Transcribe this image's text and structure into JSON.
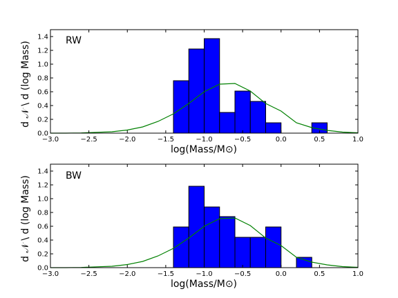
{
  "chart_data": [
    {
      "type": "bar",
      "panel_label": "RW",
      "xlabel": "log(Mass/M⊙)",
      "ylabel": "d 𝒩 \\ d (log Mass)",
      "xlim": [
        -3.0,
        1.0
      ],
      "ylim": [
        0.0,
        1.5
      ],
      "xticks": [
        "−3.0",
        "−2.5",
        "−2.0",
        "−1.5",
        "−1.0",
        "−0.5",
        "0.0",
        "0.5",
        "1.0"
      ],
      "yticks": [
        "0.0",
        "0.2",
        "0.4",
        "0.6",
        "0.8",
        "1.0",
        "1.2",
        "1.4"
      ],
      "histogram": {
        "bin_edges": [
          -1.4,
          -1.2,
          -1.0,
          -0.8,
          -0.6,
          -0.4,
          -0.2,
          0.0,
          0.2,
          0.4,
          0.6
        ],
        "values": [
          0.76,
          1.22,
          1.37,
          0.3,
          0.61,
          0.46,
          0.15,
          0.0,
          0.0,
          0.15
        ],
        "color": "#0000ff"
      },
      "curve": {
        "color": "#008000",
        "x": [
          -3.0,
          -2.8,
          -2.6,
          -2.4,
          -2.2,
          -2.0,
          -1.8,
          -1.6,
          -1.4,
          -1.2,
          -1.0,
          -0.8,
          -0.6,
          -0.4,
          -0.2,
          0.0,
          0.2,
          0.4,
          0.6,
          0.8,
          1.0
        ],
        "y": [
          0.0,
          0.0,
          0.003,
          0.012,
          0.02,
          0.045,
          0.09,
          0.17,
          0.28,
          0.43,
          0.6,
          0.71,
          0.72,
          0.61,
          0.43,
          0.32,
          0.15,
          0.08,
          0.04,
          0.015,
          0.005
        ]
      },
      "grid": false
    },
    {
      "type": "bar",
      "panel_label": "BW",
      "xlabel": "log(Mass/M⊙)",
      "ylabel": "d 𝒩 \\ d (log Mass)",
      "xlim": [
        -3.0,
        1.0
      ],
      "ylim": [
        0.0,
        1.5
      ],
      "xticks": [
        "−3.0",
        "−2.5",
        "−2.0",
        "−1.5",
        "−1.0",
        "−0.5",
        "0.0",
        "0.5",
        "1.0"
      ],
      "yticks": [
        "0.0",
        "0.2",
        "0.4",
        "0.6",
        "0.8",
        "1.0",
        "1.2",
        "1.4"
      ],
      "histogram": {
        "bin_edges": [
          -1.4,
          -1.2,
          -1.0,
          -0.8,
          -0.6,
          -0.4,
          -0.2,
          0.0,
          0.2,
          0.4
        ],
        "values": [
          0.59,
          1.18,
          0.88,
          0.74,
          0.44,
          0.44,
          0.59,
          0.0,
          0.15
        ],
        "color": "#0000ff"
      },
      "curve": {
        "color": "#008000",
        "x": [
          -3.0,
          -2.8,
          -2.6,
          -2.4,
          -2.2,
          -2.0,
          -1.8,
          -1.6,
          -1.4,
          -1.2,
          -1.0,
          -0.8,
          -0.6,
          -0.4,
          -0.2,
          0.0,
          0.2,
          0.4,
          0.6,
          0.8,
          1.0
        ],
        "y": [
          0.0,
          0.0,
          0.003,
          0.012,
          0.02,
          0.045,
          0.09,
          0.17,
          0.28,
          0.43,
          0.6,
          0.71,
          0.72,
          0.61,
          0.43,
          0.32,
          0.15,
          0.08,
          0.04,
          0.015,
          0.005
        ]
      },
      "grid": false
    }
  ]
}
